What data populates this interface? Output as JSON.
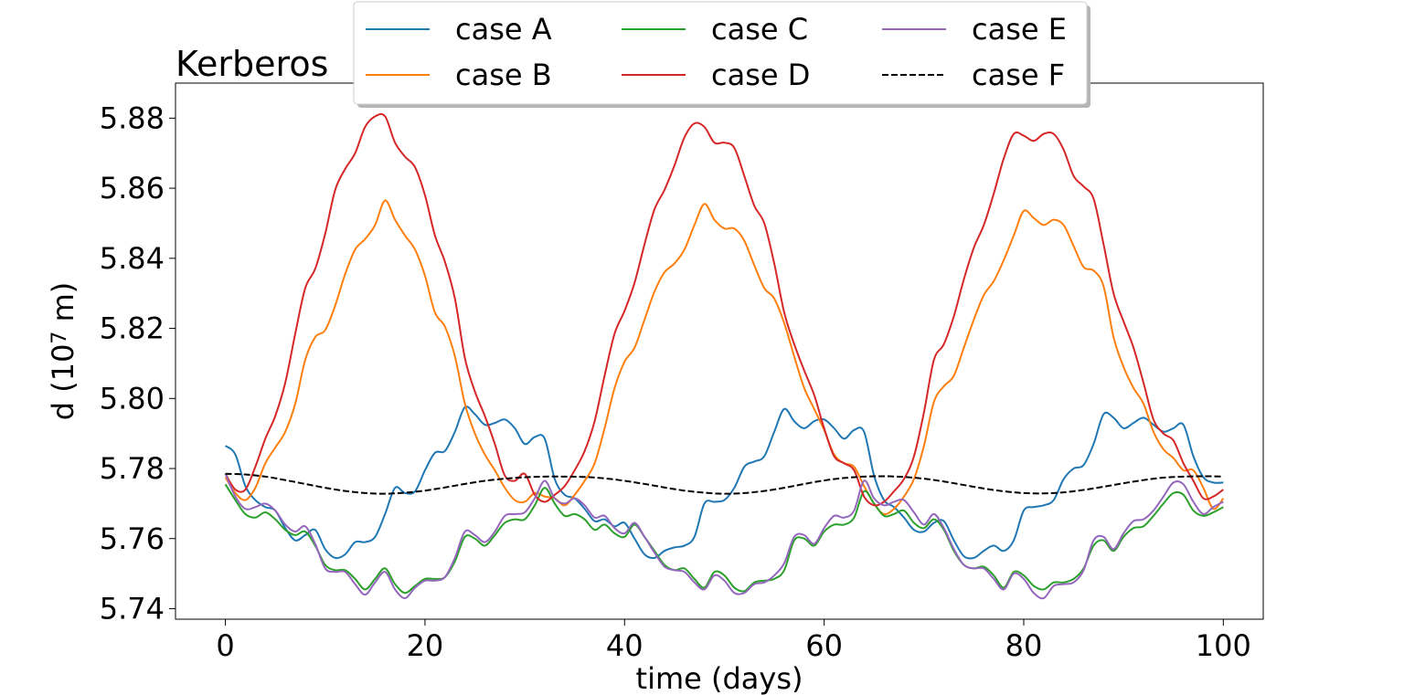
{
  "chart_data": {
    "type": "line",
    "title": "Kerberos",
    "xlabel": "time (days)",
    "ylabel": "d (10⁷ m)",
    "ylabel_base": "d (10",
    "ylabel_exp": "7",
    "ylabel_unit": " m)",
    "xlim": [
      -5,
      104
    ],
    "ylim": [
      5.737,
      5.89
    ],
    "x_ticks": [
      0,
      20,
      40,
      60,
      80,
      100
    ],
    "y_ticks": [
      5.74,
      5.76,
      5.78,
      5.8,
      5.82,
      5.84,
      5.86,
      5.88
    ],
    "x_tick_labels": [
      "0",
      "20",
      "40",
      "60",
      "80",
      "100"
    ],
    "y_tick_labels": [
      "5.74",
      "5.76",
      "5.78",
      "5.80",
      "5.82",
      "5.84",
      "5.86",
      "5.88"
    ],
    "grid": false,
    "legend": {
      "placement": "top-center",
      "columns": 3
    },
    "series": [
      {
        "name": "case A",
        "color": "#1f77b4",
        "style": "solid",
        "x": [
          0,
          1,
          2,
          3,
          4,
          5,
          6,
          7,
          8,
          9,
          10,
          11,
          12,
          13,
          14,
          15,
          16,
          17,
          18,
          19,
          20,
          21,
          22,
          23,
          24,
          25,
          26,
          27,
          28,
          29,
          30,
          31,
          32,
          33,
          34,
          35,
          36,
          37,
          38,
          39,
          40,
          41,
          42,
          43,
          44,
          45,
          46,
          47,
          48,
          49,
          50,
          51,
          52,
          53,
          54,
          55,
          56,
          57,
          58,
          59,
          60,
          61,
          62,
          63,
          64,
          65,
          66,
          67,
          68,
          69,
          70,
          71,
          72,
          73,
          74,
          75,
          76,
          77,
          78,
          79,
          80,
          81,
          82,
          83,
          84,
          85,
          86,
          87,
          88,
          89,
          90,
          91,
          92,
          93,
          94,
          95,
          96,
          97,
          98,
          99,
          100
        ],
        "values": [
          5.7865,
          5.784,
          5.775,
          5.771,
          5.769,
          5.768,
          5.763,
          5.7595,
          5.761,
          5.7625,
          5.757,
          5.7545,
          5.7555,
          5.759,
          5.759,
          5.7605,
          5.767,
          5.7745,
          5.773,
          5.7735,
          5.7795,
          5.7845,
          5.785,
          5.7905,
          5.7975,
          5.7955,
          5.7925,
          5.793,
          5.794,
          5.7915,
          5.787,
          5.789,
          5.7885,
          5.777,
          5.7725,
          5.7715,
          5.7685,
          5.765,
          5.7655,
          5.7635,
          5.7645,
          5.76,
          5.7555,
          5.7545,
          5.7565,
          5.7575,
          5.758,
          5.7605,
          5.77,
          5.7705,
          5.771,
          5.7745,
          5.7805,
          5.782,
          5.7835,
          5.7905,
          5.797,
          5.7935,
          5.7915,
          5.7935,
          5.794,
          5.7915,
          5.7885,
          5.791,
          5.7905,
          5.778,
          5.771,
          5.769,
          5.766,
          5.7625,
          5.762,
          5.7645,
          5.765,
          5.7595,
          5.755,
          5.7545,
          5.7565,
          5.758,
          5.7565,
          5.7595,
          5.768,
          5.769,
          5.7695,
          5.771,
          5.777,
          5.78,
          5.781,
          5.787,
          5.7955,
          5.7945,
          5.7915,
          5.793,
          5.7945,
          5.7925,
          5.7905,
          5.7915,
          5.7925,
          5.7835,
          5.7775,
          5.776,
          5.776
        ]
      },
      {
        "name": "case B",
        "color": "#ff7f0e",
        "style": "solid",
        "x": [
          0,
          1,
          2,
          3,
          4,
          5,
          6,
          7,
          8,
          9,
          10,
          11,
          12,
          13,
          14,
          15,
          16,
          17,
          18,
          19,
          20,
          21,
          22,
          23,
          24,
          25,
          26,
          27,
          28,
          29,
          30,
          31,
          32,
          33,
          34,
          35,
          36,
          37,
          38,
          39,
          40,
          41,
          42,
          43,
          44,
          45,
          46,
          47,
          48,
          49,
          50,
          51,
          52,
          53,
          54,
          55,
          56,
          57,
          58,
          59,
          60,
          61,
          62,
          63,
          64,
          65,
          66,
          67,
          68,
          69,
          70,
          71,
          72,
          73,
          74,
          75,
          76,
          77,
          78,
          79,
          80,
          81,
          82,
          83,
          84,
          85,
          86,
          87,
          88,
          89,
          90,
          91,
          92,
          93,
          94,
          95,
          96,
          97,
          98,
          99,
          100
        ],
        "values": [
          5.7775,
          5.773,
          5.771,
          5.7745,
          5.7815,
          5.786,
          5.7905,
          5.7985,
          5.811,
          5.8175,
          5.8195,
          5.8265,
          5.8355,
          5.8425,
          5.8455,
          5.8495,
          5.8565,
          5.851,
          5.8465,
          5.8425,
          5.835,
          5.8245,
          5.8205,
          5.812,
          5.7985,
          5.79,
          5.784,
          5.7795,
          5.7745,
          5.771,
          5.7705,
          5.773,
          5.772,
          5.7715,
          5.7695,
          5.7725,
          5.7765,
          5.7815,
          5.7915,
          5.803,
          5.8105,
          5.8145,
          5.8225,
          5.8305,
          5.836,
          5.8385,
          5.8425,
          5.8495,
          5.8555,
          5.851,
          5.8485,
          5.8485,
          5.845,
          5.838,
          5.8315,
          5.8285,
          5.8215,
          5.812,
          5.803,
          5.797,
          5.791,
          5.784,
          5.7815,
          5.7805,
          5.775,
          5.77,
          5.767,
          5.7685,
          5.772,
          5.777,
          5.7865,
          5.799,
          5.8035,
          5.8065,
          5.8145,
          5.8225,
          5.8295,
          5.8335,
          5.8395,
          5.8465,
          5.8535,
          5.8515,
          5.8495,
          5.851,
          5.8495,
          5.8435,
          5.8375,
          5.8365,
          5.832,
          5.8175,
          5.809,
          5.803,
          5.7985,
          5.7905,
          5.7855,
          5.783,
          5.7795,
          5.7795,
          5.7745,
          5.7685,
          5.7715
        ]
      },
      {
        "name": "case C",
        "color": "#2ca02c",
        "style": "solid",
        "x": [
          0,
          1,
          2,
          3,
          4,
          5,
          6,
          7,
          8,
          9,
          10,
          11,
          12,
          13,
          14,
          15,
          16,
          17,
          18,
          19,
          20,
          21,
          22,
          23,
          24,
          25,
          26,
          27,
          28,
          29,
          30,
          31,
          32,
          33,
          34,
          35,
          36,
          37,
          38,
          39,
          40,
          41,
          42,
          43,
          44,
          45,
          46,
          47,
          48,
          49,
          50,
          51,
          52,
          53,
          54,
          55,
          56,
          57,
          58,
          59,
          60,
          61,
          62,
          63,
          64,
          65,
          66,
          67,
          68,
          69,
          70,
          71,
          72,
          73,
          74,
          75,
          76,
          77,
          78,
          79,
          80,
          81,
          82,
          83,
          84,
          85,
          86,
          87,
          88,
          89,
          90,
          91,
          92,
          93,
          94,
          95,
          96,
          97,
          98,
          99,
          100
        ],
        "values": [
          5.7755,
          5.771,
          5.767,
          5.766,
          5.7675,
          5.7655,
          5.7625,
          5.761,
          5.762,
          5.758,
          5.7525,
          5.751,
          5.751,
          5.7485,
          5.7455,
          5.7485,
          5.7515,
          5.747,
          5.7445,
          5.7465,
          5.7485,
          5.7485,
          5.749,
          5.7535,
          5.7605,
          5.76,
          5.758,
          5.761,
          5.7645,
          5.7655,
          5.7655,
          5.7695,
          5.7745,
          5.77,
          5.7665,
          5.767,
          5.7655,
          5.7625,
          5.764,
          5.7615,
          5.7605,
          5.764,
          5.7605,
          5.7565,
          5.7525,
          5.751,
          5.7515,
          5.7485,
          5.746,
          5.7505,
          5.7495,
          5.746,
          5.745,
          5.7475,
          5.748,
          5.7485,
          5.751,
          5.7595,
          5.76,
          5.758,
          5.762,
          5.764,
          5.764,
          5.766,
          5.7735,
          5.77,
          5.7665,
          5.767,
          5.768,
          5.7645,
          5.763,
          5.7655,
          5.7625,
          5.7565,
          5.7525,
          5.7515,
          5.752,
          5.7495,
          5.746,
          5.7505,
          5.7495,
          5.7465,
          5.7455,
          5.7475,
          5.7475,
          5.7485,
          5.7515,
          5.758,
          5.7595,
          5.7565,
          5.7605,
          5.763,
          5.7635,
          5.7665,
          5.77,
          5.773,
          5.7725,
          5.768,
          5.7665,
          5.7675,
          5.769
        ]
      },
      {
        "name": "case D",
        "color": "#d62728",
        "style": "solid",
        "x": [
          0,
          1,
          2,
          3,
          4,
          5,
          6,
          7,
          8,
          9,
          10,
          11,
          12,
          13,
          14,
          15,
          16,
          17,
          18,
          19,
          20,
          21,
          22,
          23,
          24,
          25,
          26,
          27,
          28,
          29,
          30,
          31,
          32,
          33,
          34,
          35,
          36,
          37,
          38,
          39,
          40,
          41,
          42,
          43,
          44,
          45,
          46,
          47,
          48,
          49,
          50,
          51,
          52,
          53,
          54,
          55,
          56,
          57,
          58,
          59,
          60,
          61,
          62,
          63,
          64,
          65,
          66,
          67,
          68,
          69,
          70,
          71,
          72,
          73,
          74,
          75,
          76,
          77,
          78,
          79,
          80,
          81,
          82,
          83,
          84,
          85,
          86,
          87,
          88,
          89,
          90,
          91,
          92,
          93,
          94,
          95,
          96,
          97,
          98,
          99,
          100
        ],
        "values": [
          5.7785,
          5.774,
          5.774,
          5.7805,
          5.7885,
          5.795,
          5.8045,
          5.8185,
          5.8315,
          5.837,
          5.847,
          5.8595,
          5.8655,
          5.87,
          5.8775,
          5.8805,
          5.8805,
          5.873,
          5.869,
          5.866,
          5.858,
          5.8465,
          5.839,
          5.8285,
          5.8115,
          5.802,
          5.795,
          5.787,
          5.778,
          5.7765,
          5.7785,
          5.7725,
          5.7705,
          5.7725,
          5.775,
          5.7795,
          5.785,
          5.7935,
          5.8065,
          5.8185,
          5.825,
          5.833,
          5.844,
          5.854,
          5.8595,
          5.8665,
          5.8745,
          5.8785,
          5.8775,
          5.873,
          5.873,
          5.8715,
          5.8635,
          5.855,
          5.85,
          5.8385,
          5.8245,
          5.8155,
          5.808,
          5.801,
          5.7915,
          5.7835,
          5.7815,
          5.7795,
          5.772,
          5.7695,
          5.7705,
          5.7735,
          5.777,
          5.7835,
          5.796,
          5.811,
          5.8155,
          5.8235,
          5.834,
          5.843,
          5.8495,
          5.8585,
          5.8685,
          5.8755,
          5.875,
          5.8735,
          5.8755,
          5.8755,
          5.871,
          5.8635,
          5.8605,
          5.857,
          5.844,
          5.83,
          5.822,
          5.8145,
          5.8045,
          5.794,
          5.79,
          5.788,
          5.7815,
          5.7765,
          5.7715,
          5.772,
          5.774
        ]
      },
      {
        "name": "case E",
        "color": "#9467bd",
        "style": "solid",
        "x": [
          0,
          1,
          2,
          3,
          4,
          5,
          6,
          7,
          8,
          9,
          10,
          11,
          12,
          13,
          14,
          15,
          16,
          17,
          18,
          19,
          20,
          21,
          22,
          23,
          24,
          25,
          26,
          27,
          28,
          29,
          30,
          31,
          32,
          33,
          34,
          35,
          36,
          37,
          38,
          39,
          40,
          41,
          42,
          43,
          44,
          45,
          46,
          47,
          48,
          49,
          50,
          51,
          52,
          53,
          54,
          55,
          56,
          57,
          58,
          59,
          60,
          61,
          62,
          63,
          64,
          65,
          66,
          67,
          68,
          69,
          70,
          71,
          72,
          73,
          74,
          75,
          76,
          77,
          78,
          79,
          80,
          81,
          82,
          83,
          84,
          85,
          86,
          87,
          88,
          89,
          90,
          91,
          92,
          93,
          94,
          95,
          96,
          97,
          98,
          99,
          100
        ],
        "values": [
          5.7785,
          5.772,
          5.7685,
          5.769,
          5.77,
          5.768,
          5.764,
          5.762,
          5.7635,
          5.7585,
          5.7515,
          5.7505,
          5.7505,
          5.747,
          5.744,
          5.7475,
          5.7505,
          5.7455,
          5.743,
          5.746,
          5.748,
          5.748,
          5.749,
          5.7545,
          5.762,
          5.761,
          5.759,
          5.762,
          5.7665,
          5.767,
          5.7675,
          5.7715,
          5.7765,
          5.7715,
          5.77,
          5.7715,
          5.7695,
          5.766,
          5.7665,
          5.763,
          5.7615,
          5.7645,
          5.7605,
          5.756,
          5.752,
          5.751,
          5.7505,
          5.7475,
          5.7455,
          5.7495,
          5.748,
          5.7445,
          5.7445,
          5.747,
          5.7475,
          5.7495,
          5.753,
          5.7605,
          5.761,
          5.7585,
          5.763,
          5.7665,
          5.766,
          5.768,
          5.7765,
          5.7715,
          5.7695,
          5.7705,
          5.771,
          5.7675,
          5.764,
          5.767,
          5.763,
          5.757,
          5.7525,
          5.7515,
          5.7515,
          5.7485,
          5.7455,
          5.75,
          5.7485,
          5.7445,
          5.743,
          5.7465,
          5.747,
          5.7475,
          5.751,
          5.7595,
          5.7605,
          5.757,
          5.7615,
          5.765,
          5.7655,
          5.768,
          5.772,
          5.776,
          5.7755,
          5.7705,
          5.767,
          5.769,
          5.7705
        ]
      },
      {
        "name": "case F",
        "color": "#000000",
        "style": "dashed",
        "x": [
          0,
          2,
          4,
          6,
          8,
          10,
          12,
          14,
          16,
          18,
          20,
          22,
          24,
          26,
          28,
          30,
          32,
          34,
          36,
          38,
          40,
          42,
          44,
          46,
          48,
          50,
          52,
          54,
          56,
          58,
          60,
          62,
          64,
          66,
          68,
          70,
          72,
          74,
          76,
          78,
          80,
          82,
          84,
          86,
          88,
          90,
          92,
          94,
          96,
          98,
          100
        ],
        "values": [
          5.7785,
          5.7783,
          5.7777,
          5.7767,
          5.7756,
          5.7745,
          5.7736,
          5.773,
          5.7728,
          5.7731,
          5.7737,
          5.7746,
          5.7756,
          5.7765,
          5.7771,
          5.7775,
          5.7777,
          5.7777,
          5.7776,
          5.7772,
          5.7765,
          5.7756,
          5.7746,
          5.7737,
          5.7731,
          5.7728,
          5.773,
          5.7736,
          5.7745,
          5.7756,
          5.7766,
          5.7773,
          5.7777,
          5.7778,
          5.7776,
          5.7771,
          5.7763,
          5.7753,
          5.7743,
          5.7735,
          5.773,
          5.7729,
          5.7732,
          5.7739,
          5.7748,
          5.7758,
          5.7767,
          5.7774,
          5.7777,
          5.7778,
          5.7777
        ]
      }
    ]
  }
}
